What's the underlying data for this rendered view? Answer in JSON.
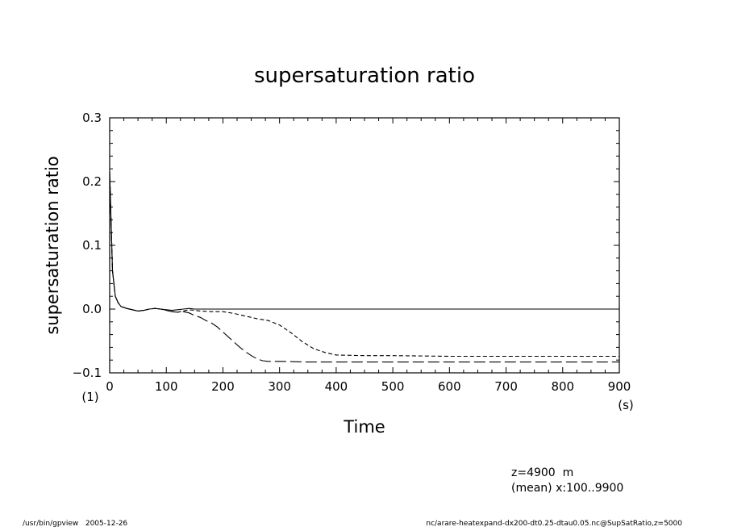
{
  "chart_data": {
    "type": "line",
    "title": "supersaturation ratio",
    "xlabel": "Time",
    "ylabel": "supersaturation ratio",
    "x_unit": "(s)",
    "y_unit": "(1)",
    "xlim": [
      0,
      900
    ],
    "ylim": [
      -0.1,
      0.3
    ],
    "x_ticks": [
      0,
      100,
      200,
      300,
      400,
      500,
      600,
      700,
      800,
      900
    ],
    "y_ticks": [
      "0.3",
      "0.2",
      "0.1",
      "0.0",
      "−0.1"
    ],
    "y_tick_values": [
      0.3,
      0.2,
      0.1,
      0.0,
      -0.1
    ],
    "grid": false,
    "series": [
      {
        "style": "solid",
        "x": [
          0,
          5,
          10,
          15,
          20,
          30,
          40,
          50,
          60,
          70,
          80,
          90,
          100,
          110,
          120,
          130,
          140,
          150,
          160,
          180,
          200,
          250,
          300,
          400,
          500,
          600,
          700,
          800,
          900
        ],
        "y": [
          0.215,
          0.06,
          0.02,
          0.01,
          0.004,
          0.001,
          -0.001,
          -0.003,
          -0.002,
          0.0,
          0.001,
          0.0,
          -0.001,
          -0.002,
          -0.001,
          0.0,
          0.001,
          0.0,
          0.0,
          0.0,
          0.0,
          0.0,
          0.0,
          0.0,
          0.0,
          0.0,
          0.0,
          0.0,
          0.0
        ]
      },
      {
        "style": "dashed",
        "x": [
          0,
          5,
          10,
          15,
          20,
          30,
          40,
          50,
          60,
          70,
          80,
          90,
          100,
          110,
          120,
          130,
          140,
          150,
          160,
          180,
          200,
          220,
          240,
          260,
          280,
          300,
          320,
          340,
          360,
          380,
          400,
          450,
          500,
          600,
          700,
          800,
          900
        ],
        "y": [
          0.215,
          0.06,
          0.02,
          0.01,
          0.004,
          0.001,
          -0.001,
          -0.003,
          -0.002,
          0.0,
          0.001,
          0.0,
          -0.002,
          -0.004,
          -0.005,
          -0.003,
          -0.001,
          -0.002,
          -0.003,
          -0.004,
          -0.004,
          -0.007,
          -0.011,
          -0.015,
          -0.018,
          -0.025,
          -0.037,
          -0.051,
          -0.062,
          -0.068,
          -0.072,
          -0.073,
          -0.073,
          -0.074,
          -0.074,
          -0.074,
          -0.074
        ]
      },
      {
        "style": "long-dash",
        "x": [
          0,
          5,
          10,
          15,
          20,
          30,
          40,
          50,
          60,
          70,
          80,
          90,
          100,
          110,
          120,
          130,
          140,
          150,
          160,
          170,
          180,
          190,
          200,
          210,
          220,
          230,
          240,
          250,
          260,
          270,
          280,
          300,
          350,
          400,
          500,
          600,
          700,
          800,
          900
        ],
        "y": [
          0.215,
          0.06,
          0.02,
          0.01,
          0.004,
          0.001,
          -0.001,
          -0.003,
          -0.002,
          0.0,
          0.001,
          0.0,
          -0.002,
          -0.004,
          -0.005,
          -0.004,
          -0.006,
          -0.01,
          -0.013,
          -0.018,
          -0.022,
          -0.028,
          -0.036,
          -0.044,
          -0.052,
          -0.06,
          -0.067,
          -0.073,
          -0.078,
          -0.081,
          -0.082,
          -0.082,
          -0.083,
          -0.083,
          -0.083,
          -0.083,
          -0.083,
          -0.083,
          -0.083
        ]
      }
    ]
  },
  "annotations": {
    "level": "z=4900  m",
    "mean": "(mean) x:100..9900"
  },
  "footer": {
    "left": "/usr/bin/gpview   2005-12-26",
    "right": "nc/arare-heatexpand-dx200-dt0.25-dtau0.05.nc@SupSatRatio,z=5000"
  }
}
